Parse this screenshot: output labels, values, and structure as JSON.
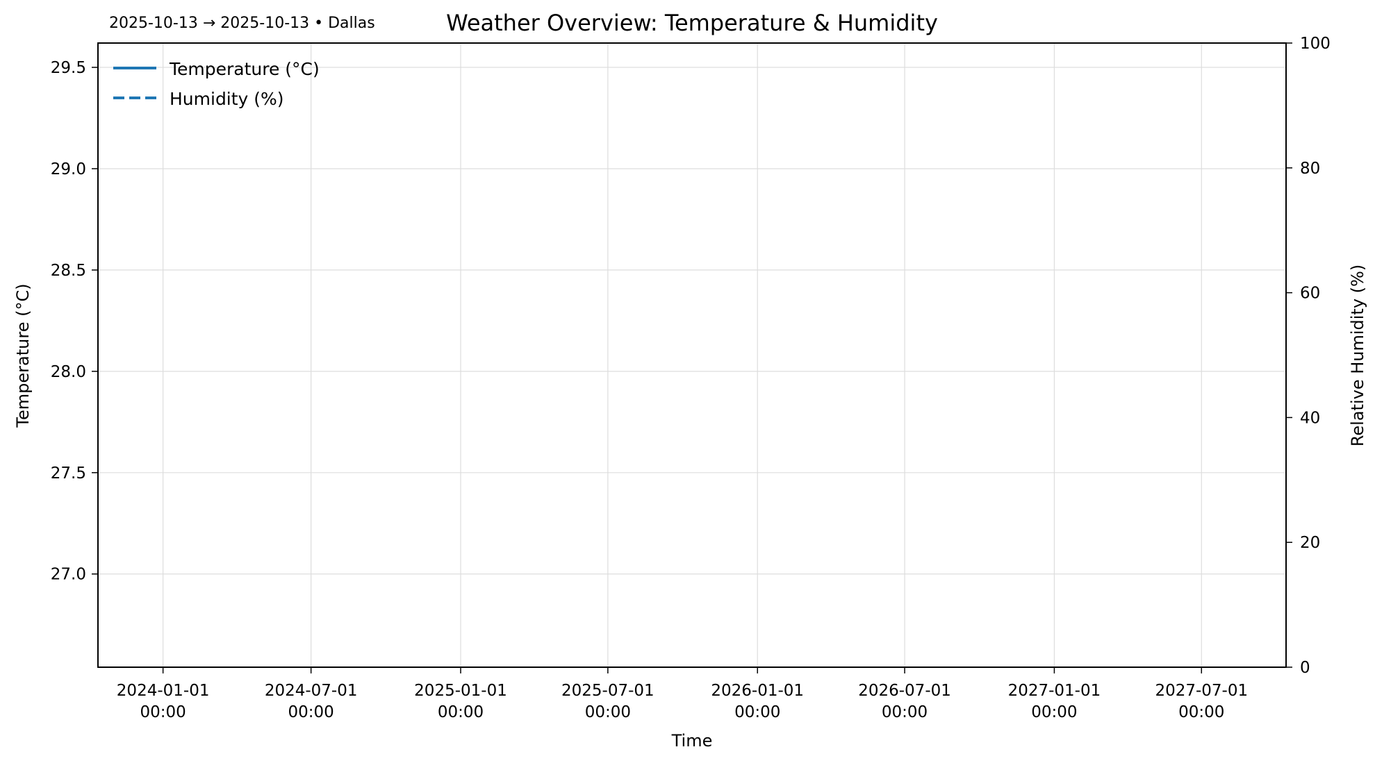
{
  "chart_data": {
    "type": "line",
    "title": "Weather Overview: Temperature & Humidity",
    "subtitle": "2025-10-13 → 2025-10-13 • Dallas",
    "xlabel": "Time",
    "ylabel_left": "Temperature (°C)",
    "ylabel_right": "Relative Humidity (%)",
    "x_ticks": [
      {
        "date": "2024-01-01",
        "label_date": "2024-01-01",
        "label_time": "00:00"
      },
      {
        "date": "2024-07-01",
        "label_date": "2024-07-01",
        "label_time": "00:00"
      },
      {
        "date": "2025-01-01",
        "label_date": "2025-01-01",
        "label_time": "00:00"
      },
      {
        "date": "2025-07-01",
        "label_date": "2025-07-01",
        "label_time": "00:00"
      },
      {
        "date": "2026-01-01",
        "label_date": "2026-01-01",
        "label_time": "00:00"
      },
      {
        "date": "2026-07-01",
        "label_date": "2026-07-01",
        "label_time": "00:00"
      },
      {
        "date": "2027-01-01",
        "label_date": "2027-01-01",
        "label_time": "00:00"
      },
      {
        "date": "2027-07-01",
        "label_date": "2027-07-01",
        "label_time": "00:00"
      }
    ],
    "xlim": [
      "2023-10-13",
      "2027-10-13"
    ],
    "y_left_ticks": [
      "27.0",
      "27.5",
      "28.0",
      "28.5",
      "29.0",
      "29.5"
    ],
    "ylim_left": [
      26.54,
      29.62
    ],
    "y_right_ticks": [
      "0",
      "20",
      "40",
      "60",
      "80",
      "100"
    ],
    "ylim_right": [
      0,
      100
    ],
    "grid": true,
    "legend_position": "top-left",
    "series": [
      {
        "name": "Temperature (°C)",
        "axis": "left",
        "style": "solid",
        "color": "#1f77b4",
        "values": []
      },
      {
        "name": "Humidity (%)",
        "axis": "right",
        "style": "dashed",
        "color": "#1f77b4",
        "values": []
      }
    ]
  }
}
